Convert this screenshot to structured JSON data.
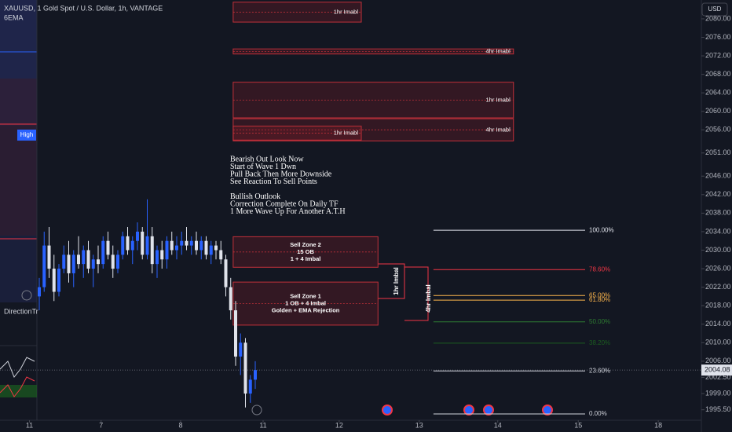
{
  "chart_data": {
    "type": "candlestick",
    "symbol": "XAUUSD, 1",
    "title": "Gold Spot / U.S. Dollar, 1h, VANTAGE",
    "indicator": "6EMA",
    "currency": "USD",
    "side_labels": [
      "High",
      "DirectionTr"
    ],
    "up_color": "#2962ff",
    "down_color": "#e0e3eb",
    "grid": false,
    "xlim": [
      0,
      142.88
    ],
    "xticks": [
      {
        "value": 6,
        "label": "11"
      },
      {
        "value": 20.6,
        "label": "7"
      },
      {
        "value": 36.8,
        "label": "8"
      },
      {
        "value": 53.6,
        "label": "11"
      },
      {
        "value": 69.1,
        "label": "12"
      },
      {
        "value": 85.4,
        "label": "13"
      },
      {
        "value": 101.4,
        "label": "14"
      },
      {
        "value": 117.8,
        "label": "15"
      },
      {
        "value": 134.1,
        "label": "18"
      }
    ],
    "ylim": [
      1993.75,
      2084.07
    ],
    "yticks": [
      {
        "value": 2080,
        "label": "2080.00"
      },
      {
        "value": 2076,
        "label": "2076.00"
      },
      {
        "value": 2072,
        "label": "2072.00"
      },
      {
        "value": 2068,
        "label": "2068.00"
      },
      {
        "value": 2064,
        "label": "2064.00"
      },
      {
        "value": 2060,
        "label": "2060.00"
      },
      {
        "value": 2056,
        "label": "2056.00"
      },
      {
        "value": 2051,
        "label": "2051.00"
      },
      {
        "value": 2046,
        "label": "2046.00"
      },
      {
        "value": 2042,
        "label": "2042.00"
      },
      {
        "value": 2038,
        "label": "2038.00"
      },
      {
        "value": 2034,
        "label": "2034.00"
      },
      {
        "value": 2030,
        "label": "2030.00"
      },
      {
        "value": 2026,
        "label": "2026.00"
      },
      {
        "value": 2022,
        "label": "2022.00"
      },
      {
        "value": 2018,
        "label": "2018.00"
      },
      {
        "value": 2014,
        "label": "2014.00"
      },
      {
        "value": 2010,
        "label": "2010.00"
      },
      {
        "value": 2006,
        "label": "2006.00"
      },
      {
        "value": 2002.5,
        "label": "2002.50"
      },
      {
        "value": 1999,
        "label": "1999.00"
      },
      {
        "value": 1995.5,
        "label": "1995.50"
      }
    ],
    "last_price": {
      "value": 2004.08,
      "label": "2004.08"
    },
    "x": [
      8,
      9,
      10,
      11,
      12,
      13,
      14,
      15,
      16,
      17,
      18,
      19,
      20,
      21,
      22,
      23,
      24,
      25,
      26,
      27,
      28,
      29,
      30,
      31,
      32,
      33,
      34,
      35,
      36,
      37,
      38,
      39,
      40,
      41,
      42,
      43,
      44,
      45,
      46,
      47,
      48,
      49,
      50,
      51,
      52
    ],
    "ohlc": [
      [
        2020,
        2024,
        2017,
        2022
      ],
      [
        2022,
        2034,
        2021,
        2031
      ],
      [
        2031,
        2035,
        2024,
        2026
      ],
      [
        2026,
        2029,
        2019,
        2021
      ],
      [
        2021,
        2027,
        2020,
        2026
      ],
      [
        2026,
        2031,
        2025,
        2029
      ],
      [
        2029,
        2032,
        2023,
        2025
      ],
      [
        2025,
        2030,
        2022,
        2029
      ],
      [
        2029,
        2033,
        2026,
        2027
      ],
      [
        2027,
        2031,
        2024,
        2030
      ],
      [
        2030,
        2032,
        2025,
        2026
      ],
      [
        2026,
        2029,
        2022,
        2028
      ],
      [
        2028,
        2031,
        2025,
        2027
      ],
      [
        2027,
        2033,
        2026,
        2032
      ],
      [
        2032,
        2034,
        2028,
        2029
      ],
      [
        2029,
        2031,
        2024,
        2026
      ],
      [
        2026,
        2030,
        2025,
        2029
      ],
      [
        2029,
        2034,
        2028,
        2033
      ],
      [
        2033,
        2035,
        2029,
        2030
      ],
      [
        2030,
        2033,
        2027,
        2032
      ],
      [
        2032,
        2036,
        2030,
        2034
      ],
      [
        2034,
        2035,
        2028,
        2029
      ],
      [
        2029,
        2041,
        2028,
        2033
      ],
      [
        2033,
        2035,
        2025,
        2027
      ],
      [
        2027,
        2031,
        2024,
        2030
      ],
      [
        2030,
        2032,
        2026,
        2028
      ],
      [
        2028,
        2033,
        2026,
        2032
      ],
      [
        2032,
        2034,
        2029,
        2030
      ],
      [
        2030,
        2033,
        2028,
        2031
      ],
      [
        2031,
        2034,
        2029,
        2032
      ],
      [
        2032,
        2035,
        2030,
        2031
      ],
      [
        2031,
        2033,
        2029,
        2032
      ],
      [
        2032,
        2034,
        2029,
        2030
      ],
      [
        2030,
        2033,
        2028,
        2032
      ],
      [
        2032,
        2033,
        2028,
        2029
      ],
      [
        2029,
        2032,
        2027,
        2031
      ],
      [
        2031,
        2032,
        2028,
        2030
      ],
      [
        2030,
        2032,
        2027,
        2028
      ],
      [
        2028,
        2029,
        2020,
        2022
      ],
      [
        2022,
        2024,
        2015,
        2017
      ],
      [
        2017,
        2019,
        2005,
        2007
      ],
      [
        2007,
        2012,
        2003,
        2010
      ],
      [
        2010,
        2011,
        1996,
        1999
      ],
      [
        1999,
        2003,
        1997,
        2002
      ],
      [
        2002,
        2006,
        2000,
        2004.08
      ]
    ],
    "zones": [
      {
        "label": "1hr Imabl",
        "x": [
          47.5,
          73.6
        ],
        "y": [
          2083.6,
          2079.3
        ]
      },
      {
        "label": "4hr Imabl",
        "x": [
          47.5,
          104.6
        ],
        "y": [
          2073.5,
          2072.4
        ]
      },
      {
        "label": "1hr Imabl",
        "x": [
          47.5,
          104.6
        ],
        "y": [
          2066.3,
          2058.6
        ]
      },
      {
        "label": "4hr Imabl",
        "x": [
          47.5,
          104.6
        ],
        "y": [
          2058.4,
          2053.6
        ]
      },
      {
        "label": "1hr Imabl",
        "x": [
          47.5,
          73.6
        ],
        "y": [
          2056.8,
          2053.8
        ]
      },
      {
        "lines": [
          "Sell Zone 2",
          "15 OB",
          "1 + 4 Imbal"
        ],
        "x": [
          47.5,
          77
        ],
        "y": [
          2032.9,
          2026.3
        ]
      },
      {
        "lines": [
          "Sell Zone 1",
          "1 OB + 4 Imbal",
          "Golden + EMA Rejection"
        ],
        "x": [
          47.5,
          77
        ],
        "y": [
          2023.1,
          2013.8
        ]
      }
    ],
    "brackets": [
      "1hr Imbal",
      "4hr Imbal"
    ],
    "fib_x": [
      88.3,
      119.2
    ],
    "levels": [
      {
        "label": "100.00%",
        "value": 2034.3,
        "color": "#e0e3eb"
      },
      {
        "label": "78.60%",
        "value": 2025.8,
        "color": "#f23645"
      },
      {
        "label": "65.00%",
        "value": 2020.2,
        "color": "#ffb74d"
      },
      {
        "label": "61.80%",
        "value": 2019.2,
        "color": "#ffb74d"
      },
      {
        "label": "50.00%",
        "value": 2014.5,
        "color": "#2e7d32"
      },
      {
        "label": "38.20%",
        "value": 2009.9,
        "color": "#1b5e20"
      },
      {
        "label": "23.60%",
        "value": 2003.9,
        "color": "#d1d4dc"
      },
      {
        "label": "0.00%",
        "value": 1994.6,
        "color": "#d1d4dc"
      }
    ],
    "notes": [
      [
        "Bearish Out Look Now",
        "Start of Wave 1 Dwn",
        "Pull Back Then More Downside",
        "See Reaction To Sell Points"
      ],
      [
        "Bullish Outlook",
        "Correction Complete On Daily TF",
        "1 More Wave Up For Another A.T.H"
      ]
    ]
  }
}
